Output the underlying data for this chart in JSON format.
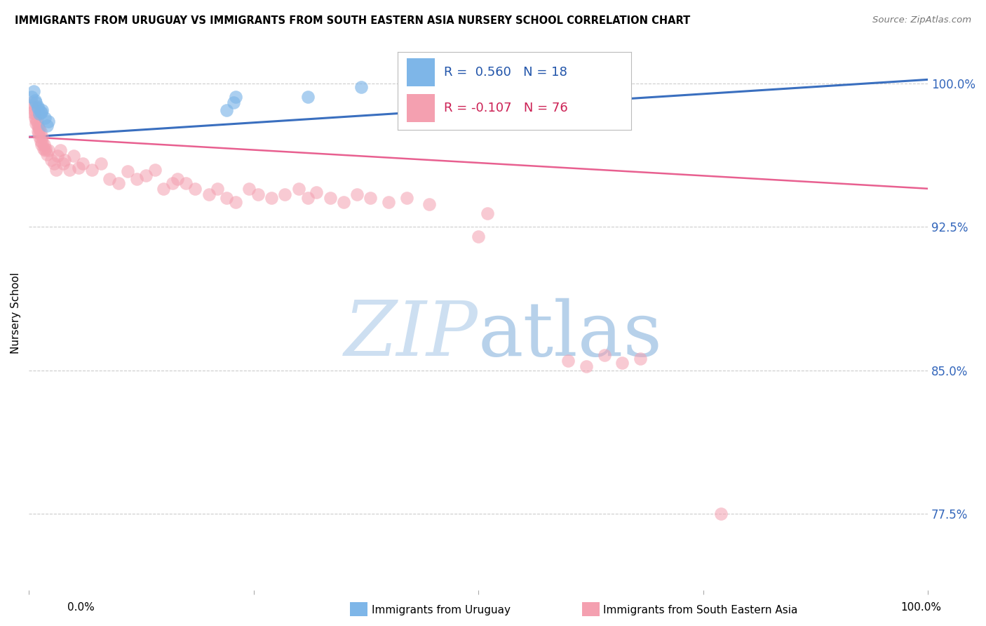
{
  "title": "IMMIGRANTS FROM URUGUAY VS IMMIGRANTS FROM SOUTH EASTERN ASIA NURSERY SCHOOL CORRELATION CHART",
  "source": "Source: ZipAtlas.com",
  "ylabel": "Nursery School",
  "ytick_labels": [
    "100.0%",
    "92.5%",
    "85.0%",
    "77.5%"
  ],
  "ytick_values": [
    1.0,
    0.925,
    0.85,
    0.775
  ],
  "xlim": [
    0.0,
    1.0
  ],
  "ylim": [
    0.735,
    1.025
  ],
  "legend_label1": "Immigrants from Uruguay",
  "legend_label2": "Immigrants from South Eastern Asia",
  "R1": 0.56,
  "N1": 18,
  "R2": -0.107,
  "N2": 76,
  "color_blue": "#7EB6E8",
  "color_pink": "#F4A0B0",
  "line_blue": "#3A6FBF",
  "line_pink": "#E86090",
  "watermark_zip_color": "#C8DCF0",
  "watermark_atlas_color": "#B0CCE8",
  "blue_points_x": [
    0.003,
    0.005,
    0.007,
    0.008,
    0.01,
    0.01,
    0.012,
    0.013,
    0.014,
    0.015,
    0.018,
    0.02,
    0.022,
    0.22,
    0.228,
    0.23,
    0.31,
    0.37
  ],
  "blue_points_y": [
    0.993,
    0.996,
    0.991,
    0.99,
    0.987,
    0.988,
    0.984,
    0.985,
    0.985,
    0.986,
    0.982,
    0.978,
    0.98,
    0.986,
    0.99,
    0.993,
    0.993,
    0.998
  ],
  "pink_points_x": [
    0.003,
    0.004,
    0.005,
    0.006,
    0.007,
    0.007,
    0.008,
    0.008,
    0.009,
    0.01,
    0.01,
    0.011,
    0.011,
    0.012,
    0.012,
    0.013,
    0.013,
    0.014,
    0.015,
    0.015,
    0.016,
    0.017,
    0.018,
    0.019,
    0.02,
    0.022,
    0.025,
    0.028,
    0.03,
    0.032,
    0.035,
    0.038,
    0.04,
    0.045,
    0.05,
    0.055,
    0.06,
    0.07,
    0.08,
    0.09,
    0.1,
    0.11,
    0.12,
    0.13,
    0.14,
    0.15,
    0.16,
    0.165,
    0.175,
    0.185,
    0.2,
    0.21,
    0.22,
    0.23,
    0.245,
    0.255,
    0.27,
    0.285,
    0.3,
    0.31,
    0.32,
    0.335,
    0.35,
    0.365,
    0.38,
    0.4,
    0.42,
    0.445,
    0.5,
    0.51,
    0.6,
    0.62,
    0.64,
    0.66,
    0.68,
    0.77
  ],
  "pink_points_y": [
    0.99,
    0.985,
    0.988,
    0.986,
    0.982,
    0.984,
    0.979,
    0.981,
    0.98,
    0.978,
    0.975,
    0.977,
    0.974,
    0.976,
    0.972,
    0.975,
    0.97,
    0.968,
    0.972,
    0.969,
    0.966,
    0.968,
    0.965,
    0.966,
    0.963,
    0.965,
    0.96,
    0.958,
    0.955,
    0.962,
    0.965,
    0.958,
    0.96,
    0.955,
    0.962,
    0.956,
    0.958,
    0.955,
    0.958,
    0.95,
    0.948,
    0.954,
    0.95,
    0.952,
    0.955,
    0.945,
    0.948,
    0.95,
    0.948,
    0.945,
    0.942,
    0.945,
    0.94,
    0.938,
    0.945,
    0.942,
    0.94,
    0.942,
    0.945,
    0.94,
    0.943,
    0.94,
    0.938,
    0.942,
    0.94,
    0.938,
    0.94,
    0.937,
    0.92,
    0.932,
    0.855,
    0.852,
    0.858,
    0.854,
    0.856,
    0.775
  ],
  "blue_line_x": [
    0.0,
    1.0
  ],
  "blue_line_y": [
    0.972,
    1.002
  ],
  "pink_line_x": [
    0.0,
    1.0
  ],
  "pink_line_y": [
    0.972,
    0.945
  ]
}
